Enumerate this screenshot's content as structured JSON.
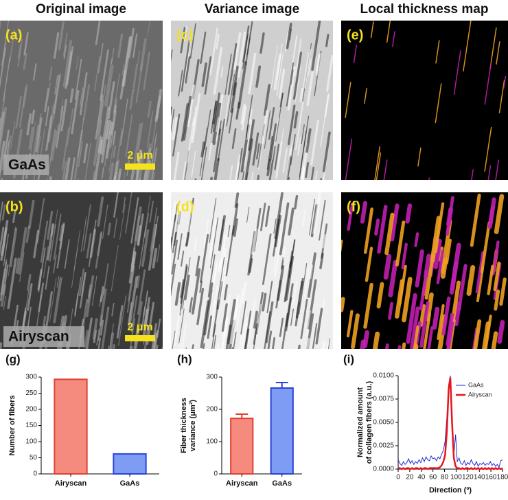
{
  "headers": [
    "Original image",
    "Variance image",
    "Local thickness map"
  ],
  "panels": [
    {
      "label": "(a)",
      "sample": "GaAs",
      "scale": "2 μm"
    },
    {
      "label": "(b)",
      "sample": "Airyscan",
      "scale": "2 μm"
    },
    {
      "label": "(c)"
    },
    {
      "label": "(d)"
    },
    {
      "label": "(e)"
    },
    {
      "label": "(f)"
    }
  ],
  "chart_data": [
    {
      "type": "bar",
      "label": "(g)",
      "ylabel": [
        "Number of fibers"
      ],
      "categories": [
        "Airyscan",
        "GaAs"
      ],
      "values": [
        293,
        62
      ],
      "colors": [
        "#f58a7e",
        "#7f9cf5"
      ],
      "edges": [
        "#e0402f",
        "#2a43d6"
      ],
      "ylim": [
        0,
        300
      ],
      "yticks": [
        0,
        50,
        100,
        150,
        200,
        250,
        300
      ]
    },
    {
      "type": "bar",
      "label": "(h)",
      "ylabel": [
        "Fiber thickness",
        "variance (μm²)"
      ],
      "categories": [
        "Airyscan",
        "GaAs"
      ],
      "values": [
        172,
        266
      ],
      "errors": [
        13,
        17
      ],
      "colors": [
        "#f58a7e",
        "#7f9cf5"
      ],
      "edges": [
        "#e0402f",
        "#2a43d6"
      ],
      "ylim": [
        0,
        300
      ],
      "yticks": [
        0,
        100,
        200,
        300
      ]
    },
    {
      "type": "line",
      "label": "(i)",
      "ylabel": [
        "Normalized amount",
        "of collagen fibers (a.u.)"
      ],
      "xlabel": "Direction (º)",
      "x": [
        0,
        3,
        6,
        9,
        12,
        15,
        18,
        21,
        24,
        27,
        30,
        33,
        36,
        39,
        42,
        45,
        48,
        51,
        54,
        57,
        60,
        63,
        66,
        69,
        72,
        75,
        78,
        81,
        84,
        87,
        90,
        93,
        96,
        99,
        102,
        105,
        108,
        111,
        114,
        117,
        120,
        123,
        126,
        129,
        132,
        135,
        138,
        141,
        144,
        147,
        150,
        153,
        156,
        159,
        162,
        165,
        168,
        171,
        174,
        177,
        180
      ],
      "series": [
        {
          "name": "GaAs",
          "color": "#1f2ed6",
          "width": 1,
          "values": [
            0.001,
            0.0006,
            0.0004,
            0.0008,
            0.0005,
            0.0007,
            0.0011,
            0.0006,
            0.0009,
            0.0005,
            0.0008,
            0.0006,
            0.001,
            0.0007,
            0.0012,
            0.0008,
            0.0013,
            0.001,
            0.0009,
            0.0014,
            0.0011,
            0.0012,
            0.0009,
            0.0013,
            0.0011,
            0.0016,
            0.002,
            0.003,
            0.0055,
            0.009,
            0.01,
            0.0045,
            0.0015,
            0.0037,
            0.0008,
            0.0012,
            0.0006,
            0.0005,
            0.0009,
            0.0004,
            0.0007,
            0.0005,
            0.001,
            0.0006,
            0.0004,
            0.0008,
            0.0003,
            0.0006,
            0.0005,
            0.0007,
            0.0004,
            0.0006,
            0.0005,
            0.0008,
            0.0004,
            0.0006,
            0.0003,
            0.0005,
            0.0002,
            0.0009,
            0.001
          ]
        },
        {
          "name": "Airyscan",
          "color": "#e8141b",
          "width": 2.5,
          "values": [
            0.0001,
            0.0001,
            0,
            0.0001,
            0,
            0.0001,
            0.0001,
            0,
            0.0001,
            0,
            0.0001,
            0.0001,
            0,
            0.0001,
            0,
            0.0001,
            0.0001,
            0,
            0.0001,
            0.0001,
            0.0001,
            0.0001,
            0.0001,
            0.0001,
            0.0002,
            0.0004,
            0.0008,
            0.0015,
            0.004,
            0.0085,
            0.0098,
            0.005,
            0.0012,
            0.0003,
            0.0001,
            0.0001,
            0,
            0.0001,
            0,
            0.0001,
            0.0001,
            0,
            0.0001,
            0,
            0.0001,
            0,
            0.0001,
            0,
            0.0001,
            0,
            0.0001,
            0,
            0.0001,
            0,
            0.0001,
            0,
            0.0001,
            0,
            0.0001,
            0,
            0.0001
          ]
        }
      ],
      "xlim": [
        0,
        180
      ],
      "xticks": [
        0,
        20,
        40,
        60,
        80,
        100,
        120,
        140,
        160,
        180
      ],
      "ylim": [
        0,
        0.01
      ],
      "yticks": [
        {
          "value": 0,
          "label": "0.0000"
        },
        {
          "value": 0.0025,
          "label": "0.0025"
        },
        {
          "value": 0.005,
          "label": "0.0050"
        },
        {
          "value": 0.0075,
          "label": "0.0075"
        },
        {
          "value": 0.01,
          "label": "0.0100"
        }
      ],
      "legend": "top-right"
    }
  ]
}
